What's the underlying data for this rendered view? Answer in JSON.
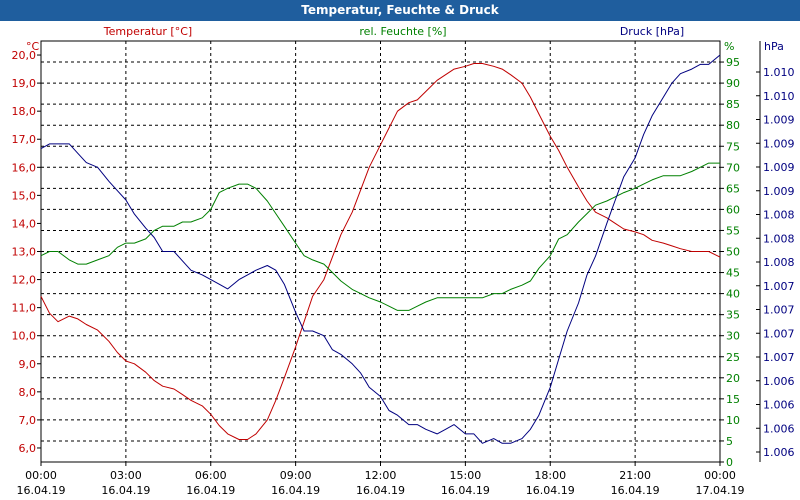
{
  "window_title": "Temperatur, Feuchte & Druck",
  "chart_data": {
    "type": "line",
    "title": "Temperatur, Feuchte & Druck",
    "x_ticks": [
      {
        "time": "00:00",
        "date": "16.04.19"
      },
      {
        "time": "03:00",
        "date": "16.04.19"
      },
      {
        "time": "06:00",
        "date": "16.04.19"
      },
      {
        "time": "09:00",
        "date": "16.04.19"
      },
      {
        "time": "12:00",
        "date": "16.04.19"
      },
      {
        "time": "15:00",
        "date": "16.04.19"
      },
      {
        "time": "18:00",
        "date": "16.04.19"
      },
      {
        "time": "21:00",
        "date": "16.04.19"
      },
      {
        "time": "00:00",
        "date": "17.04.19"
      }
    ],
    "xlim_hours": [
      0,
      24
    ],
    "grid": true,
    "axes": {
      "temperature": {
        "label": "Temperatur [°C]",
        "unit": "°C",
        "color": "#c00000",
        "ylim": [
          5.5,
          20.5
        ],
        "ticks": [
          "6,0",
          "7,0",
          "8,0",
          "9,0",
          "10,0",
          "11,0",
          "12,0",
          "13,0",
          "14,0",
          "15,0",
          "16,0",
          "17,0",
          "18,0",
          "19,0",
          "20,0"
        ]
      },
      "humidity": {
        "label": "rel. Feuchte [%]",
        "unit": "%",
        "color": "#008000",
        "ylim": [
          0,
          100
        ],
        "ticks": [
          "0",
          "5",
          "10",
          "15",
          "20",
          "25",
          "30",
          "35",
          "40",
          "45",
          "50",
          "55",
          "60",
          "65",
          "70",
          "75",
          "80",
          "85",
          "90",
          "95"
        ]
      },
      "pressure": {
        "label": "Druck [hPa]",
        "unit": "hPa",
        "color": "#000080",
        "ylim": [
          1005.8,
          1010.3
        ],
        "ticks": [
          "1.006",
          "1.006",
          "1.006",
          "1.006",
          "1.007",
          "1.007",
          "1.007",
          "1.007",
          "1.008",
          "1.008",
          "1.008",
          "1.009",
          "1.009",
          "1.009",
          "1.009",
          "1.010",
          "1.010"
        ]
      }
    },
    "series": [
      {
        "name": "Temperatur",
        "axis": "temperature",
        "color": "#c00000",
        "x": [
          0,
          0.3,
          0.6,
          1.0,
          1.3,
          1.6,
          2.0,
          2.4,
          2.7,
          3.0,
          3.3,
          3.7,
          4.0,
          4.3,
          4.7,
          5.0,
          5.3,
          5.7,
          6.0,
          6.3,
          6.6,
          7.0,
          7.3,
          7.6,
          8.0,
          8.3,
          8.6,
          9.0,
          9.3,
          9.6,
          10.0,
          10.3,
          10.6,
          11.0,
          11.3,
          11.6,
          12.0,
          12.3,
          12.6,
          13.0,
          13.3,
          13.6,
          14.0,
          14.3,
          14.6,
          15.0,
          15.3,
          15.6,
          16.0,
          16.3,
          16.6,
          17.0,
          17.3,
          17.6,
          18.0,
          18.3,
          18.6,
          19.0,
          19.3,
          19.6,
          20.0,
          20.3,
          20.6,
          21.0,
          21.3,
          21.6,
          22.0,
          22.3,
          22.6,
          23.0,
          23.3,
          23.6,
          24.0
        ],
        "y": [
          11.4,
          10.8,
          10.5,
          10.7,
          10.6,
          10.4,
          10.2,
          9.8,
          9.4,
          9.1,
          9.0,
          8.7,
          8.4,
          8.2,
          8.1,
          7.9,
          7.7,
          7.5,
          7.2,
          6.8,
          6.5,
          6.3,
          6.3,
          6.5,
          7.0,
          7.7,
          8.5,
          9.6,
          10.5,
          11.4,
          12.0,
          12.8,
          13.6,
          14.4,
          15.2,
          16.0,
          16.8,
          17.4,
          18.0,
          18.3,
          18.4,
          18.7,
          19.1,
          19.3,
          19.5,
          19.6,
          19.7,
          19.7,
          19.6,
          19.5,
          19.3,
          19.0,
          18.5,
          17.9,
          17.1,
          16.6,
          16.0,
          15.3,
          14.8,
          14.4,
          14.2,
          14.0,
          13.8,
          13.7,
          13.6,
          13.4,
          13.3,
          13.2,
          13.1,
          13.0,
          13.0,
          13.0,
          12.8
        ]
      },
      {
        "name": "rel. Feuchte",
        "axis": "humidity",
        "color": "#008000",
        "x": [
          0,
          0.3,
          0.6,
          1.0,
          1.3,
          1.6,
          2.0,
          2.4,
          2.7,
          3.0,
          3.3,
          3.7,
          4.0,
          4.3,
          4.7,
          5.0,
          5.3,
          5.7,
          6.0,
          6.3,
          6.6,
          7.0,
          7.3,
          7.6,
          8.0,
          8.3,
          8.6,
          9.0,
          9.3,
          9.6,
          10.0,
          10.3,
          10.6,
          11.0,
          11.3,
          11.6,
          12.0,
          12.3,
          12.6,
          13.0,
          13.3,
          13.6,
          14.0,
          14.3,
          14.6,
          15.0,
          15.3,
          15.6,
          16.0,
          16.3,
          16.6,
          17.0,
          17.3,
          17.6,
          18.0,
          18.3,
          18.6,
          19.0,
          19.3,
          19.6,
          20.0,
          20.3,
          20.6,
          21.0,
          21.3,
          21.6,
          22.0,
          22.3,
          22.6,
          23.0,
          23.3,
          23.6,
          24.0
        ],
        "y": [
          49,
          50,
          50,
          48,
          47,
          47,
          48,
          49,
          51,
          52,
          52,
          53,
          55,
          56,
          56,
          57,
          57,
          58,
          60,
          64,
          65,
          66,
          66,
          65,
          62,
          59,
          56,
          52,
          49,
          48,
          47,
          45,
          43,
          41,
          40,
          39,
          38,
          37,
          36,
          36,
          37,
          38,
          39,
          39,
          39,
          39,
          39,
          39,
          40,
          40,
          41,
          42,
          43,
          46,
          49,
          53,
          54,
          57,
          59,
          61,
          62,
          63,
          64,
          65,
          66,
          67,
          68,
          68,
          68,
          69,
          70,
          71,
          71
        ]
      },
      {
        "name": "Druck",
        "axis": "pressure",
        "color": "#000080",
        "x": [
          0,
          0.3,
          0.6,
          1.0,
          1.3,
          1.6,
          2.0,
          2.4,
          2.7,
          3.0,
          3.3,
          3.7,
          4.0,
          4.3,
          4.7,
          5.0,
          5.3,
          5.7,
          6.0,
          6.3,
          6.6,
          7.0,
          7.3,
          7.6,
          8.0,
          8.3,
          8.6,
          9.0,
          9.3,
          9.6,
          10.0,
          10.3,
          10.6,
          11.0,
          11.3,
          11.6,
          12.0,
          12.3,
          12.6,
          13.0,
          13.3,
          13.6,
          14.0,
          14.3,
          14.6,
          15.0,
          15.3,
          15.6,
          16.0,
          16.3,
          16.6,
          17.0,
          17.3,
          17.6,
          18.0,
          18.3,
          18.6,
          19.0,
          19.3,
          19.6,
          20.0,
          20.3,
          20.6,
          21.0,
          21.3,
          21.6,
          22.0,
          22.3,
          22.6,
          23.0,
          23.3,
          23.6,
          24.0
        ],
        "y": [
          1009.15,
          1009.2,
          1009.2,
          1009.2,
          1009.1,
          1009.0,
          1008.95,
          1008.8,
          1008.7,
          1008.6,
          1008.45,
          1008.3,
          1008.2,
          1008.05,
          1008.05,
          1007.95,
          1007.85,
          1007.8,
          1007.75,
          1007.7,
          1007.65,
          1007.75,
          1007.8,
          1007.85,
          1007.9,
          1007.85,
          1007.7,
          1007.4,
          1007.2,
          1007.2,
          1007.15,
          1007.0,
          1006.95,
          1006.85,
          1006.75,
          1006.6,
          1006.5,
          1006.35,
          1006.3,
          1006.2,
          1006.2,
          1006.15,
          1006.1,
          1006.15,
          1006.2,
          1006.1,
          1006.1,
          1006.0,
          1006.05,
          1006.0,
          1006.0,
          1006.05,
          1006.15,
          1006.3,
          1006.6,
          1006.9,
          1007.2,
          1007.5,
          1007.8,
          1008.0,
          1008.35,
          1008.6,
          1008.85,
          1009.05,
          1009.3,
          1009.5,
          1009.7,
          1009.85,
          1009.95,
          1010.0,
          1010.05,
          1010.05,
          1010.15
        ]
      }
    ]
  }
}
